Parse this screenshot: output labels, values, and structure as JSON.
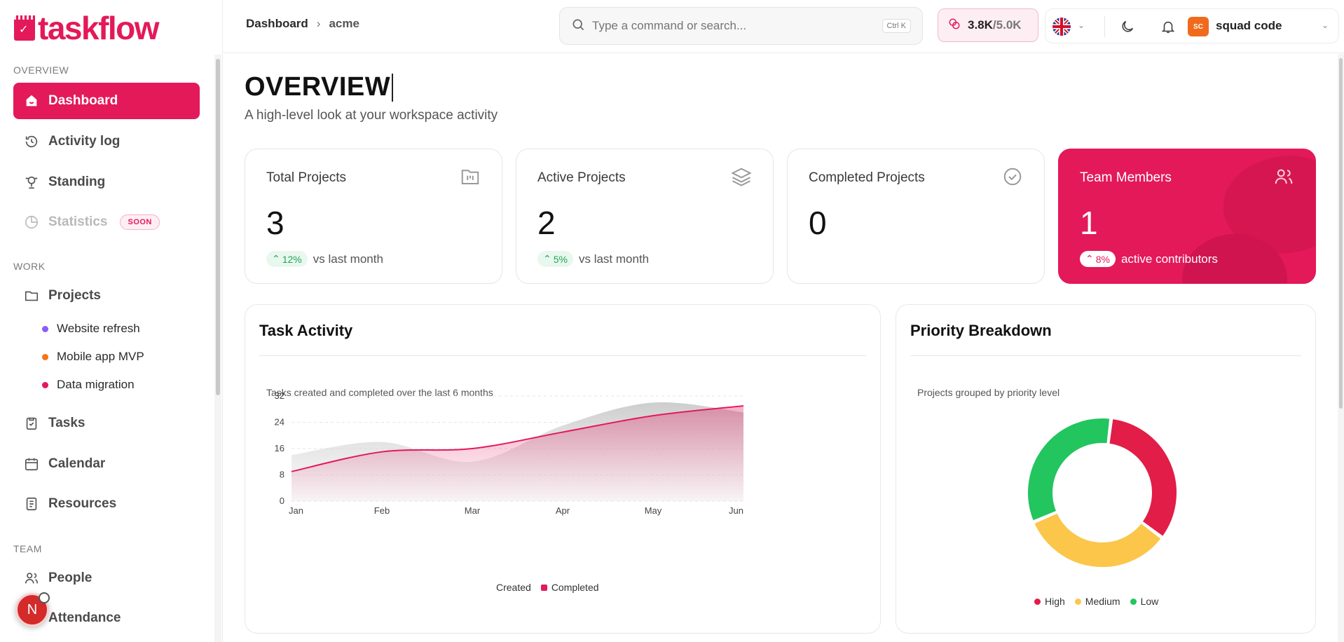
{
  "brand": {
    "name": "taskflow",
    "color": "#e3195a"
  },
  "sidebar": {
    "sections": {
      "overview": "OVERVIEW",
      "work": "WORK",
      "team": "TEAM"
    },
    "overview_items": [
      {
        "label": "Dashboard",
        "icon": "dashboard-icon",
        "active": true
      },
      {
        "label": "Activity log",
        "icon": "history-icon"
      },
      {
        "label": "Standing",
        "icon": "trophy-icon"
      },
      {
        "label": "Statistics",
        "icon": "pie-chart-icon",
        "badge": "SOON",
        "disabled": true
      }
    ],
    "work_items": [
      {
        "label": "Projects",
        "icon": "folder-icon"
      },
      {
        "label": "Tasks",
        "icon": "clipboard-check-icon"
      },
      {
        "label": "Calendar",
        "icon": "calendar-icon"
      },
      {
        "label": "Resources",
        "icon": "document-icon"
      }
    ],
    "projects": [
      {
        "label": "Website refresh",
        "color": "#8b5cf6"
      },
      {
        "label": "Mobile app MVP",
        "color": "#f97316"
      },
      {
        "label": "Data migration",
        "color": "#e3195a"
      }
    ],
    "team_items": [
      {
        "label": "People",
        "icon": "users-icon"
      },
      {
        "label": "Attendance",
        "icon": "clock-icon"
      }
    ],
    "floating_avatar": "N"
  },
  "header": {
    "breadcrumb": [
      "Dashboard",
      "acme"
    ],
    "search_placeholder": "Type a command or search...",
    "search_shortcut": "Ctrl K",
    "credits_used": "3.8K",
    "credits_total": "/5.0K",
    "user_initials": "SC",
    "user_name": "squad code"
  },
  "page": {
    "title": "OVERVIEW",
    "subtitle": "A high-level look at your workspace activity"
  },
  "stats": [
    {
      "label": "Total Projects",
      "value": "3",
      "delta": "12%",
      "delta_text": "vs last month",
      "icon": "kanban-icon"
    },
    {
      "label": "Active Projects",
      "value": "2",
      "delta": "5%",
      "delta_text": "vs last month",
      "icon": "layers-icon"
    },
    {
      "label": "Completed Projects",
      "value": "0",
      "icon": "check-circle-icon"
    },
    {
      "label": "Team Members",
      "value": "1",
      "delta": "8%",
      "delta_text": "active contributors",
      "icon": "users-icon",
      "accent": true
    }
  ],
  "task_activity": {
    "title": "Task Activity",
    "description": "Tasks created and completed over the last 6 months",
    "legend": [
      "Created",
      "Completed"
    ]
  },
  "priority": {
    "title": "Priority Breakdown",
    "description": "Projects grouped by priority level",
    "legend": [
      "High",
      "Medium",
      "Low"
    ]
  },
  "chart_data": [
    {
      "type": "area",
      "categories": [
        "Jan",
        "Feb",
        "Mar",
        "Apr",
        "May",
        "Jun"
      ],
      "ylim": [
        0,
        32
      ],
      "yticks": [
        0,
        8,
        16,
        24,
        32
      ],
      "grid": true,
      "legend_position": "bottom",
      "series": [
        {
          "name": "Created",
          "values": [
            14,
            18,
            12,
            23,
            30,
            27
          ],
          "color": "#cfcfcf"
        },
        {
          "name": "Completed",
          "values": [
            9,
            15,
            16,
            21,
            26,
            29
          ],
          "color": "#e3195a"
        }
      ]
    },
    {
      "type": "pie",
      "donut": true,
      "legend_position": "bottom",
      "labels": [
        "High",
        "Medium",
        "Low"
      ],
      "values": [
        1,
        1,
        1
      ],
      "colors": [
        "#e11d48",
        "#fbc64a",
        "#22c55e"
      ]
    }
  ]
}
